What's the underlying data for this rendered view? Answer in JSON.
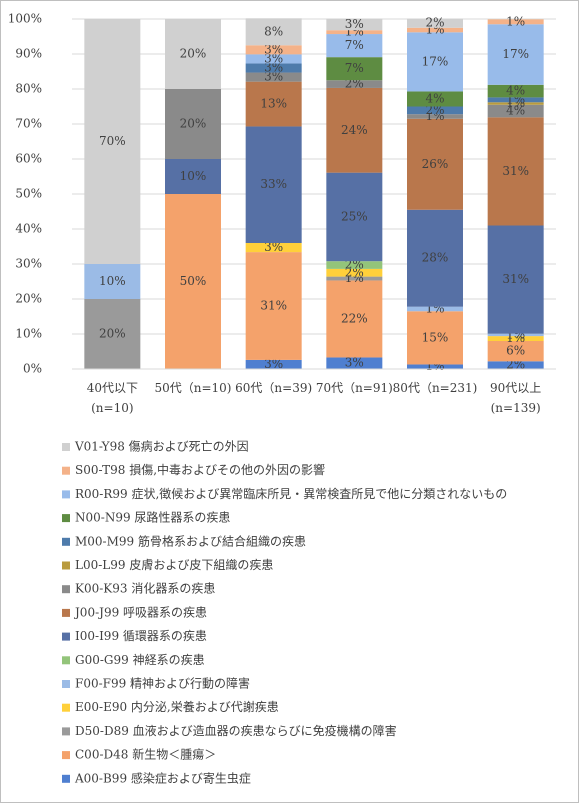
{
  "chart_data": {
    "type": "stacked_bar_100",
    "categories": [
      "40代以下\n(n=10)",
      "50代（n=10)",
      "60代（n=39)",
      "70代（n=91)",
      "80代（n=231)",
      "90代以上\n(n=139)"
    ],
    "ylim": [
      0,
      100
    ],
    "yticks": [
      {
        "value": 0,
        "label": "0%"
      },
      {
        "value": 10,
        "label": "10%"
      },
      {
        "value": 20,
        "label": "20%"
      },
      {
        "value": 30,
        "label": "30%"
      },
      {
        "value": 40,
        "label": "40%"
      },
      {
        "value": 50,
        "label": "50%"
      },
      {
        "value": 60,
        "label": "60%"
      },
      {
        "value": 70,
        "label": "70%"
      },
      {
        "value": 80,
        "label": "80%"
      },
      {
        "value": 90,
        "label": "90%"
      },
      {
        "value": 100,
        "label": "100%"
      }
    ],
    "grid": true,
    "legend": "bottom",
    "series": [
      {
        "name": "A00-B99 感染症および寄生虫症",
        "color": "#4f7fd0",
        "values": [
          0,
          0,
          2.6,
          3.3,
          1.3,
          2.2
        ],
        "value_labels": [
          null,
          null,
          "3%",
          "3%",
          "1%",
          "2%"
        ]
      },
      {
        "name": "C00-D48 新生物＜腫瘍＞",
        "color": "#f4a26b",
        "values": [
          0,
          50,
          30.8,
          22.0,
          15.2,
          5.8
        ],
        "value_labels": [
          null,
          "50%",
          "31%",
          "22%",
          "15%",
          "6%"
        ]
      },
      {
        "name": "D50-D89 血液および造血器の疾患ならびに免疫機構の障害",
        "color": "#9a9a9a",
        "values": [
          20,
          0,
          0,
          1.1,
          0,
          0
        ],
        "value_labels": [
          "20%",
          null,
          null,
          "1%",
          null,
          null
        ]
      },
      {
        "name": "E00-E90 内分泌,栄養および代謝疾患",
        "color": "#ffd03a",
        "values": [
          0,
          0,
          2.6,
          2.2,
          0,
          1.4
        ],
        "value_labels": [
          null,
          null,
          "3%",
          "2%",
          null,
          "1%"
        ]
      },
      {
        "name": "F00-F99 精神および行動の障害",
        "color": "#9bbbe6",
        "values": [
          10,
          0,
          0,
          0,
          1.3,
          0.7
        ],
        "value_labels": [
          "10%",
          null,
          null,
          null,
          "1%",
          "1%"
        ]
      },
      {
        "name": "G00-G99 神経系の疾患",
        "color": "#93c47a",
        "values": [
          0,
          0,
          0,
          2.2,
          0,
          0
        ],
        "value_labels": [
          null,
          null,
          null,
          "2%",
          null,
          null
        ]
      },
      {
        "name": "I00-I99 循環器系の疾患",
        "color": "#5670a5",
        "values": [
          0,
          10,
          33.3,
          25.3,
          27.7,
          30.9
        ],
        "value_labels": [
          null,
          "10%",
          "33%",
          "25%",
          "28%",
          "31%"
        ]
      },
      {
        "name": "J00-J99 呼吸器系の疾患",
        "color": "#b9774c",
        "values": [
          0,
          0,
          12.8,
          24.2,
          26.0,
          30.9
        ],
        "value_labels": [
          null,
          null,
          "13%",
          "24%",
          "26%",
          "31%"
        ]
      },
      {
        "name": "K00-K93 消化器系の疾患",
        "color": "#8a8a8a",
        "values": [
          0,
          20,
          2.6,
          2.2,
          1.3,
          3.6
        ],
        "value_labels": [
          null,
          "20%",
          "3%",
          "2%",
          "1%",
          "4%"
        ]
      },
      {
        "name": "L00-L99 皮膚および皮下組織の疾患",
        "color": "#b99b3e",
        "values": [
          0,
          0,
          0,
          0,
          0,
          0.7
        ],
        "value_labels": [
          null,
          null,
          null,
          null,
          null,
          "1%"
        ]
      },
      {
        "name": "M00-M99 筋骨格系および結合組織の疾患",
        "color": "#4e7bab",
        "values": [
          0,
          0,
          2.6,
          0,
          2.2,
          1.4
        ],
        "value_labels": [
          null,
          null,
          "3%",
          null,
          "2%",
          "1%"
        ]
      },
      {
        "name": "N00-N99 尿路性器系の疾患",
        "color": "#5e8c42",
        "values": [
          0,
          0,
          0,
          6.6,
          4.3,
          3.6
        ],
        "value_labels": [
          null,
          null,
          null,
          "7%",
          "4%",
          "4%"
        ]
      },
      {
        "name": "R00-R99 症状,徴候および異常臨床所見・異常検査所見で他に分類されないもの",
        "color": "#98bbea",
        "values": [
          0,
          0,
          2.6,
          6.6,
          16.9,
          17.3
        ],
        "value_labels": [
          null,
          null,
          "3%",
          "7%",
          "17%",
          "17%"
        ]
      },
      {
        "name": "S00-T98 損傷,中毒およびその他の外因の影響",
        "color": "#f4b289",
        "values": [
          0,
          0,
          2.6,
          1.1,
          1.3,
          1.4
        ],
        "value_labels": [
          null,
          null,
          "3%",
          "1%",
          "1%",
          "1%"
        ]
      },
      {
        "name": "V01-Y98 傷病および死亡の外因",
        "color": "#d0d0d0",
        "values": [
          70,
          20,
          7.7,
          3.3,
          2.6,
          0
        ],
        "value_labels": [
          "70%",
          "20%",
          "8%",
          "3%",
          "2%",
          null
        ]
      }
    ]
  }
}
